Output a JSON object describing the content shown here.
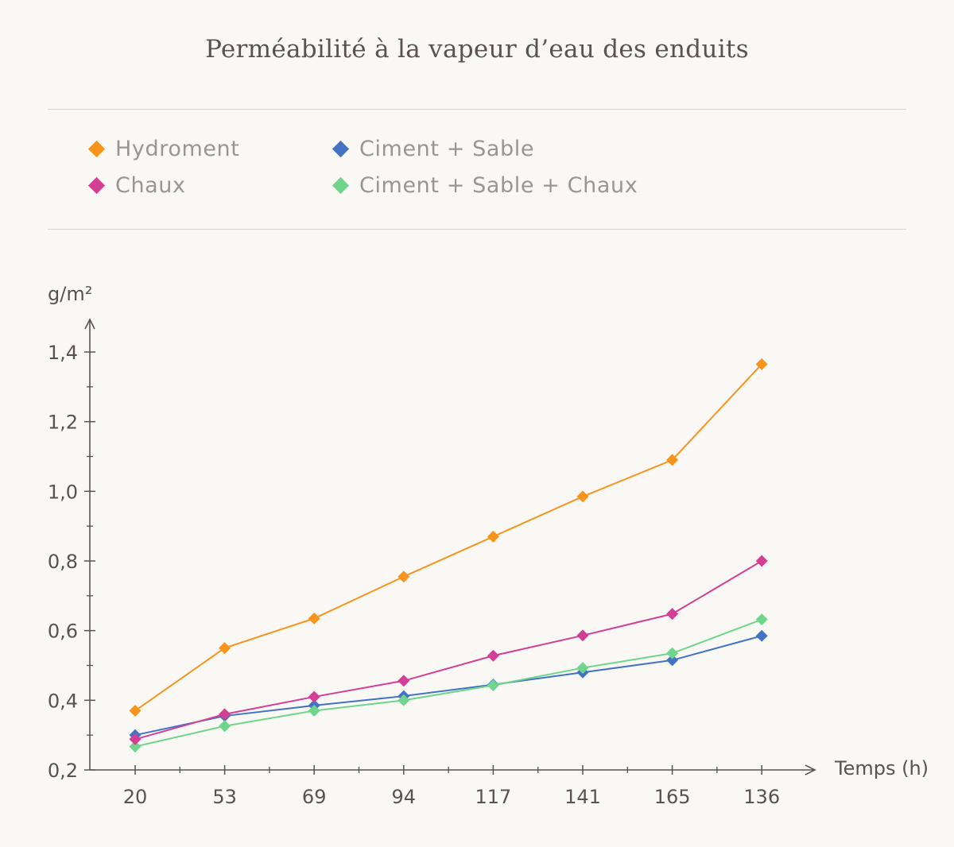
{
  "chart_data": {
    "type": "line",
    "title": "Perméabilité à la vapeur d’eau des enduits",
    "xlabel": "Temps (h)",
    "ylabel": "g/m²",
    "categories": [
      "20",
      "53",
      "69",
      "94",
      "117",
      "141",
      "165",
      "136"
    ],
    "ylim": [
      0.2,
      1.45
    ],
    "yticks": [
      "0,2",
      "0,4",
      "0,6",
      "0,8",
      "1,0",
      "1,2",
      "1,4"
    ],
    "ytick_values": [
      0.2,
      0.4,
      0.6,
      0.8,
      1.0,
      1.2,
      1.4
    ],
    "legend_position": "top",
    "series": [
      {
        "name": "Hydroment",
        "color": "#f7941d",
        "values": [
          0.37,
          0.55,
          0.635,
          0.755,
          0.87,
          0.985,
          1.09,
          1.365
        ]
      },
      {
        "name": "Ciment + Sable",
        "color": "#4472c4",
        "values": [
          0.3,
          0.355,
          0.385,
          0.412,
          0.445,
          0.48,
          0.515,
          0.585
        ]
      },
      {
        "name": "Chaux",
        "color": "#d43f96",
        "values": [
          0.288,
          0.36,
          0.41,
          0.456,
          0.528,
          0.586,
          0.648,
          0.8
        ]
      },
      {
        "name": "Ciment + Sable + Chaux",
        "color": "#6fd58a",
        "values": [
          0.267,
          0.326,
          0.37,
          0.4,
          0.443,
          0.493,
          0.535,
          0.632
        ]
      }
    ]
  }
}
